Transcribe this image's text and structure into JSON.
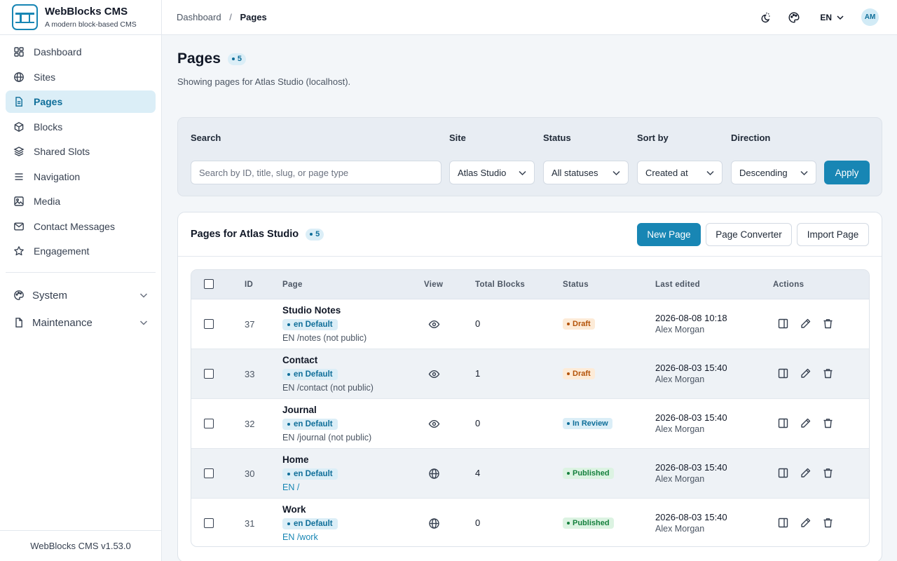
{
  "brand": {
    "name": "WebBlocks CMS",
    "tagline": "A modern block-based CMS"
  },
  "sidebar": {
    "items": [
      {
        "label": "Dashboard",
        "icon": "dashboard-icon",
        "active": false
      },
      {
        "label": "Sites",
        "icon": "globe-icon",
        "active": false
      },
      {
        "label": "Pages",
        "icon": "file-icon",
        "active": true
      },
      {
        "label": "Blocks",
        "icon": "cube-icon",
        "active": false
      },
      {
        "label": "Shared Slots",
        "icon": "layers-icon",
        "active": false
      },
      {
        "label": "Navigation",
        "icon": "menu-icon",
        "active": false
      },
      {
        "label": "Media",
        "icon": "image-icon",
        "active": false
      },
      {
        "label": "Contact Messages",
        "icon": "mail-icon",
        "active": false
      },
      {
        "label": "Engagement",
        "icon": "star-icon",
        "active": false
      }
    ],
    "groups": [
      {
        "label": "System",
        "icon": "palette-icon"
      },
      {
        "label": "Maintenance",
        "icon": "document-icon"
      }
    ],
    "footer": "WebBlocks CMS v1.53.0"
  },
  "topbar": {
    "breadcrumb_root": "Dashboard",
    "breadcrumb_sep": "/",
    "breadcrumb_current": "Pages",
    "language": "EN",
    "avatar_initials": "AM"
  },
  "page": {
    "title": "Pages",
    "count": "5",
    "subtitle": "Showing pages for Atlas Studio (localhost)."
  },
  "filters": {
    "search_label": "Search",
    "search_placeholder": "Search by ID, title, slug, or page type",
    "site_label": "Site",
    "site_value": "Atlas Studio",
    "status_label": "Status",
    "status_value": "All statuses",
    "sort_label": "Sort by",
    "sort_value": "Created at",
    "direction_label": "Direction",
    "direction_value": "Descending",
    "apply_label": "Apply"
  },
  "card": {
    "title": "Pages for Atlas Studio",
    "count": "5",
    "new_page": "New Page",
    "page_converter": "Page Converter",
    "import_page": "Import Page"
  },
  "table": {
    "headers": {
      "id": "ID",
      "page": "Page",
      "view": "View",
      "blocks": "Total Blocks",
      "status": "Status",
      "edited": "Last edited",
      "actions": "Actions"
    },
    "rows": [
      {
        "id": "37",
        "title": "Studio Notes",
        "tag": "en Default",
        "path": "EN /notes (not public)",
        "public": false,
        "blocks": "0",
        "status": "Draft",
        "status_kind": "draft",
        "edited": "2026-08-08 10:18",
        "editor": "Alex Morgan"
      },
      {
        "id": "33",
        "title": "Contact",
        "tag": "en Default",
        "path": "EN /contact (not public)",
        "public": false,
        "blocks": "1",
        "status": "Draft",
        "status_kind": "draft",
        "edited": "2026-08-03 15:40",
        "editor": "Alex Morgan"
      },
      {
        "id": "32",
        "title": "Journal",
        "tag": "en Default",
        "path": "EN /journal (not public)",
        "public": false,
        "blocks": "0",
        "status": "In Review",
        "status_kind": "review",
        "edited": "2026-08-03 15:40",
        "editor": "Alex Morgan"
      },
      {
        "id": "30",
        "title": "Home",
        "tag": "en Default",
        "path": "EN /",
        "public": true,
        "blocks": "4",
        "status": "Published",
        "status_kind": "published",
        "edited": "2026-08-03 15:40",
        "editor": "Alex Morgan"
      },
      {
        "id": "31",
        "title": "Work",
        "tag": "en Default",
        "path": "EN /work",
        "public": true,
        "blocks": "0",
        "status": "Published",
        "status_kind": "published",
        "edited": "2026-08-03 15:40",
        "editor": "Alex Morgan"
      }
    ]
  },
  "colors": {
    "accent": "#1886b4",
    "draft": "#b45309",
    "review": "#0f6e99",
    "published": "#15803d"
  }
}
